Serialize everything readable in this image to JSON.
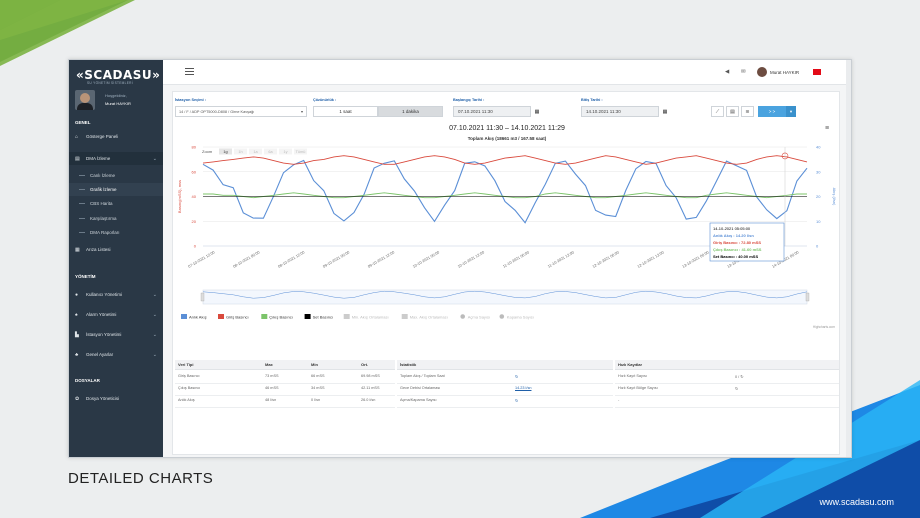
{
  "brand": {
    "logo": "«SCADASU»",
    "subtitle": "SU YÖNETİM SİSTEMLERİ",
    "site": "www.scadasu.com",
    "caption": "DETAILED CHARTS"
  },
  "user": {
    "greeting": "Hoşgeldiniz,",
    "name": "Murat HAYKIR",
    "topname": "Murat HAYKIR"
  },
  "sidebar": {
    "sec_general": "GENEL",
    "sec_management": "YÖNETİM",
    "sec_files": "DOSYALAR",
    "items": [
      {
        "label": "Gösterge Paneli",
        "icon": "home-icon"
      },
      {
        "label": "DMA İzleme",
        "icon": "chart-icon"
      },
      {
        "label": "Canlı İzleme"
      },
      {
        "label": "Grafik İzleme"
      },
      {
        "label": "CBS Harita"
      },
      {
        "label": "Karşılaştırma"
      },
      {
        "label": "DMA Raporları"
      },
      {
        "label": "Arıza Listesi",
        "icon": "calendar-icon"
      },
      {
        "label": "Kullanıcı Yönetimi",
        "icon": "user-icon"
      },
      {
        "label": "Alarm Yönetimi",
        "icon": "bell-icon"
      },
      {
        "label": "İstasyon Yönetimi",
        "icon": "station-icon"
      },
      {
        "label": "Genel Ayarlar",
        "icon": "gear-icon"
      },
      {
        "label": "Dosya Yöneticisi",
        "icon": "paw-icon"
      }
    ]
  },
  "filters": {
    "station_label": "İstasyon Seçimi :",
    "station_value": "14 / F / ADP OPT5000-D808 / Girne Kavşağı",
    "resolution_label": "Çözünürlük :",
    "res_1": "1 saat",
    "res_2": "1 dakika",
    "start_label": "Başlangıç Tarihi :",
    "start_value": "07.10.2021 11:30",
    "end_label": "Bitiş Tarihi :",
    "end_value": "14.10.2021 11:30",
    "go": "> >"
  },
  "chart": {
    "title": "07.10.2021 11:30 – 14.10.2021 11:29",
    "subtitle": "Toplam Akış (18661 m3 / 167.58 saat)",
    "zoom_label": "Zoom",
    "zoom": [
      "1g",
      "1h",
      "1a",
      "6a",
      "1y",
      "Tümü"
    ],
    "credit": "Highcharts.com",
    "tooltip": {
      "date": "14-10-2021 05:05:00",
      "l1": "Anlık Akış : 14.20 l/sn",
      "l2": "Giriş Basıncı : 72.80 mSS",
      "l3": "Çıkış Basıncı : 41.60 mSS",
      "l4": "Set Basıncı : 40.00 mSS"
    },
    "legend": [
      "Anlık Akış",
      "Giriş Basıncı",
      "Çıkış Basıncı",
      "Set Basıncı",
      "Min. Akış Ortalaması",
      "Max. Akış Ortalaması",
      "Açma Sayısı",
      "Kapama Sayısı"
    ],
    "colors": {
      "flow": "#5b8fd6",
      "inlet": "#d94a3d",
      "outlet": "#7cc46a",
      "set": "#000000"
    }
  },
  "chart_data": {
    "type": "line",
    "title": "07.10.2021 11:30 – 14.10.2021 11:29",
    "subtitle": "Toplam Akış (18661 m3 / 167.58 saat)",
    "xlabel": "",
    "ylabel_left": "Basınç(mSS), mss",
    "ylabel_right": "Akış (l/sn)",
    "ylim_left": [
      0,
      80
    ],
    "ylim_right": [
      0,
      40
    ],
    "y_ticks_left": [
      "0",
      "20",
      "40",
      "60",
      "80"
    ],
    "y_ticks_right": [
      "0",
      "10",
      "20",
      "30",
      "40"
    ],
    "x_ticks": [
      "07-10-2021 12:00",
      "08-10-2021 00:00",
      "08-10-2021 12:00",
      "09-10-2021 00:00",
      "09-10-2021 12:00",
      "10-10-2021 00:00",
      "10-10-2021 12:00",
      "11-10-2021 00:00",
      "11-10-2021 12:00",
      "12-10-2021 00:00",
      "12-10-2021 12:00",
      "13-10-2021 00:00",
      "13-10-2021 12:00",
      "14-10-2021 00:00"
    ],
    "series": [
      {
        "name": "Anlık Akış",
        "axis": "right",
        "values": [
          33,
          30,
          26,
          22,
          15,
          10,
          12,
          20,
          29,
          34,
          33,
          28,
          21,
          14,
          10,
          13,
          22,
          30,
          35,
          33,
          28,
          22,
          15,
          11,
          15,
          24,
          32,
          35,
          32,
          26,
          19,
          13,
          11,
          16,
          26,
          33,
          34,
          30,
          23,
          16,
          11,
          13,
          22,
          31,
          35,
          32,
          26,
          18,
          12,
          11,
          18,
          27,
          33,
          34,
          29,
          21,
          14,
          11,
          15,
          25,
          33
        ]
      },
      {
        "name": "Giriş Basıncı",
        "axis": "left",
        "values": [
          67,
          68,
          69,
          70,
          71,
          72,
          71,
          69,
          67,
          66,
          67,
          69,
          70,
          72,
          73,
          72,
          70,
          68,
          66,
          66,
          68,
          70,
          72,
          73,
          72,
          70,
          67,
          66,
          67,
          69,
          71,
          72,
          73,
          71,
          69,
          67,
          66,
          67,
          69,
          71,
          73,
          72,
          70,
          68,
          66,
          67,
          69,
          71,
          72,
          73,
          71,
          69,
          67,
          66,
          67,
          70,
          72,
          73,
          72,
          70,
          68
        ]
      },
      {
        "name": "Çıkış Basıncı",
        "axis": "left",
        "values": [
          42,
          42,
          41,
          41,
          40,
          39,
          40,
          41,
          42,
          43,
          42,
          41,
          40,
          39,
          39,
          40,
          41,
          42,
          43,
          42,
          41,
          40,
          39,
          39,
          40,
          41,
          42,
          43,
          42,
          41,
          40,
          39,
          39,
          40,
          42,
          43,
          42,
          41,
          40,
          39,
          39,
          40,
          41,
          42,
          43,
          42,
          41,
          40,
          39,
          39,
          41,
          42,
          43,
          42,
          41,
          40,
          39,
          40,
          41,
          42,
          42
        ]
      },
      {
        "name": "Set Basıncı",
        "axis": "left",
        "values": [
          40,
          40,
          40,
          40,
          40,
          40,
          40,
          40,
          40,
          40,
          40,
          40,
          40,
          40,
          40,
          40,
          40,
          40,
          40,
          40,
          40,
          40,
          40,
          40,
          40,
          40,
          40,
          40,
          40,
          40,
          40,
          40,
          40,
          40,
          40,
          40,
          40,
          40,
          40,
          40,
          40,
          40,
          40,
          40,
          40,
          40,
          40,
          40,
          40,
          40,
          40,
          40,
          40,
          40,
          40,
          40,
          40,
          40,
          40,
          40,
          40
        ]
      }
    ],
    "grid": true,
    "legend_position": "bottom-left"
  },
  "table_left": {
    "headers": [
      "Veri Tipi",
      "Max",
      "Min",
      "Ort."
    ],
    "rows": [
      [
        "Giriş Basıncı",
        "73 mSS",
        "66 mSS",
        "69.98 mSS"
      ],
      [
        "Çıkış Basıncı",
        "46 mSS",
        "34 mSS",
        "42.11 mSS"
      ],
      [
        "Anlık Akış",
        "48 l/sn",
        "0 l/sn",
        "26.0 l/sn"
      ]
    ]
  },
  "table_mid": {
    "header": "İstatistik",
    "rows": [
      [
        "Toplam Akış / Toplam Saat",
        "↻"
      ],
      [
        "Gece Debisi Ortalaması",
        "14.23 l/sn"
      ],
      [
        "Açma/Kapama Sayısı",
        "↻"
      ]
    ]
  },
  "table_right": {
    "header": "Hızlı Kayıtlar",
    "rows": [
      [
        "Hızlı Kayıt Sayısı",
        "0 / ↻"
      ],
      [
        "Hızlı Kayıt Bölge Sayısı",
        "↻"
      ],
      [
        "-",
        ""
      ]
    ]
  }
}
